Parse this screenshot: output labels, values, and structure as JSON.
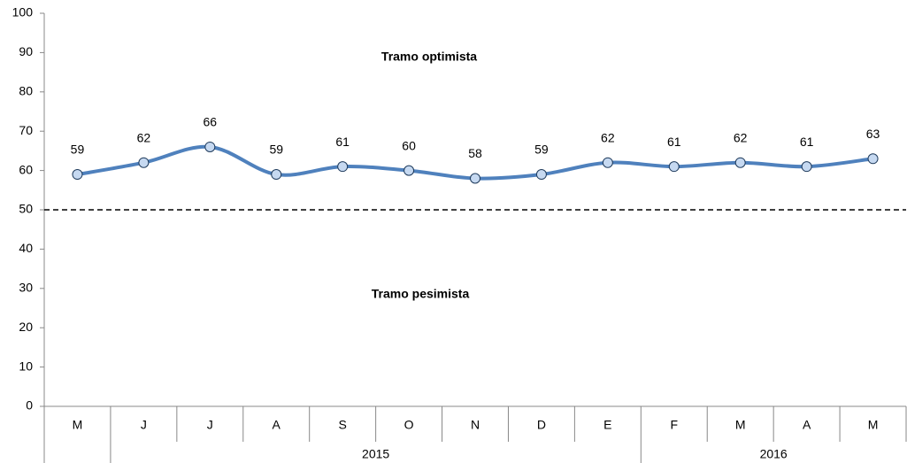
{
  "chart_data": {
    "type": "line",
    "categories": [
      "M",
      "J",
      "J",
      "A",
      "S",
      "O",
      "N",
      "D",
      "E",
      "F",
      "M",
      "A",
      "M"
    ],
    "x_groups": [
      null,
      "2015",
      "2016"
    ],
    "x_group_sizes": [
      1,
      8,
      4
    ],
    "series": [
      {
        "color": "#4f81bd",
        "marker_fill": "#c6d9f1",
        "values": [
          59,
          62,
          66,
          59,
          61,
          60,
          58,
          59,
          62,
          61,
          62,
          61,
          63
        ]
      }
    ],
    "ylim": [
      0,
      100
    ],
    "yticks": [
      0,
      10,
      20,
      30,
      40,
      50,
      60,
      70,
      80,
      90,
      100
    ],
    "reference_line": 50,
    "annotations": [
      "Tramo optimista",
      "Tramo pesimista"
    ],
    "grid": false,
    "smooth": true
  }
}
